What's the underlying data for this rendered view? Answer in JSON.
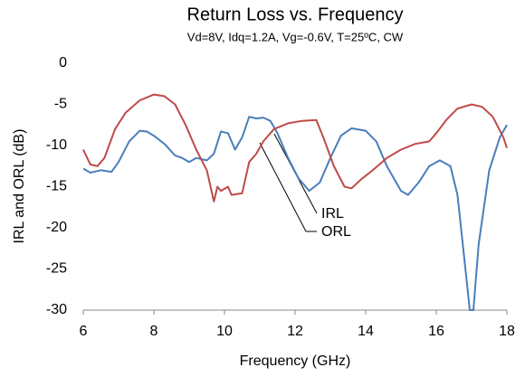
{
  "chart_data": {
    "type": "line",
    "title": "Return Loss vs. Frequency",
    "subtitle": "Vd=8V, Idq=1.2A, Vg=-0.6V, T=25ºC, CW",
    "xlabel": "Frequency (GHz)",
    "ylabel": "IRL and ORL (dB)",
    "xlim": [
      6,
      18
    ],
    "xticks": [
      6,
      8,
      10,
      12,
      14,
      16,
      18
    ],
    "ylim": [
      -30,
      0
    ],
    "yticks": [
      0,
      -5,
      -10,
      -15,
      -20,
      -25,
      -30
    ],
    "grid": false,
    "annotations": [
      "IRL",
      "ORL"
    ],
    "series": [
      {
        "name": "IRL",
        "color": "#4a7ebb",
        "x": [
          6,
          6.2,
          6.5,
          6.8,
          7,
          7.3,
          7.6,
          7.8,
          8,
          8.3,
          8.6,
          8.8,
          9,
          9.2,
          9.5,
          9.7,
          9.9,
          10.1,
          10.3,
          10.5,
          10.7,
          10.9,
          11.1,
          11.3,
          11.5,
          11.8,
          12.1,
          12.4,
          12.7,
          13,
          13.3,
          13.6,
          14,
          14.3,
          14.6,
          15,
          15.2,
          15.5,
          15.8,
          16.1,
          16.4,
          16.6,
          16.8,
          16.95,
          17.05,
          17.2,
          17.5,
          17.8,
          18
        ],
        "values": [
          -12.8,
          -13.3,
          -13,
          -13.2,
          -12,
          -9.5,
          -8.2,
          -8.3,
          -8.8,
          -9.8,
          -11.2,
          -11.5,
          -12,
          -11.5,
          -11.8,
          -11,
          -8.3,
          -8.5,
          -10.5,
          -9,
          -6.5,
          -6.7,
          -6.6,
          -7,
          -8.5,
          -11.5,
          -14,
          -15.5,
          -14.5,
          -11.5,
          -8.8,
          -7.9,
          -8.2,
          -9.5,
          -12.5,
          -15.5,
          -16,
          -14.5,
          -12.5,
          -11.8,
          -12.5,
          -16,
          -24,
          -30,
          -30,
          -22,
          -13,
          -9,
          -7.5
        ]
      },
      {
        "name": "ORL",
        "color": "#be4b48",
        "x": [
          6,
          6.2,
          6.4,
          6.6,
          6.9,
          7.2,
          7.6,
          8,
          8.3,
          8.6,
          8.9,
          9.2,
          9.5,
          9.7,
          9.8,
          9.9,
          10.1,
          10.2,
          10.5,
          10.7,
          10.9,
          11.1,
          11.4,
          11.8,
          12.2,
          12.6,
          12.8,
          13.1,
          13.4,
          13.6,
          13.9,
          14.2,
          14.6,
          15,
          15.4,
          15.8,
          16,
          16.3,
          16.6,
          17,
          17.3,
          17.6,
          17.9,
          18
        ],
        "values": [
          -10.5,
          -12.3,
          -12.5,
          -11.5,
          -8,
          -6,
          -4.5,
          -3.8,
          -4,
          -5,
          -7.5,
          -10.5,
          -13,
          -16.8,
          -15,
          -15.5,
          -15,
          -16,
          -15.8,
          -12,
          -11,
          -9.5,
          -8,
          -7.3,
          -7,
          -6.9,
          -9,
          -12.5,
          -15,
          -15.2,
          -14,
          -13,
          -11.5,
          -10.5,
          -9.8,
          -9.5,
          -8.5,
          -6.8,
          -5.5,
          -5,
          -5.3,
          -6.5,
          -9,
          -10.3
        ]
      }
    ]
  }
}
